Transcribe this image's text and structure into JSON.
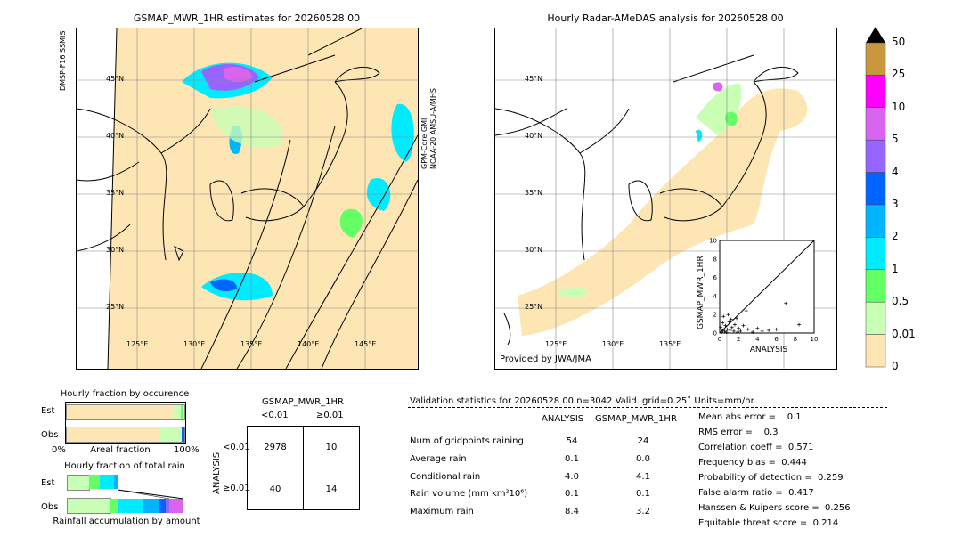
{
  "left_map": {
    "title": "GSMAP_MWR_1HR estimates for 20260528 00",
    "lat_labels": [
      "45°N",
      "40°N",
      "35°N",
      "30°N",
      "25°N"
    ],
    "lon_labels": [
      "125°E",
      "130°E",
      "135°E",
      "140°E",
      "145°E"
    ],
    "sensor_left": "DMSP-F16 SSMIS",
    "sensor_right_1": "GPM-Core GMI",
    "sensor_right_2": "NOAA-20 AMSU-A/MHS"
  },
  "right_map": {
    "title": "Hourly Radar-AMeDAS analysis for 20260528 00",
    "lat_labels": [
      "45°N",
      "40°N",
      "35°N",
      "30°N",
      "25°N"
    ],
    "lon_labels": [
      "125°E",
      "130°E",
      "135°E"
    ],
    "credit": "Provided by JWA/JMA"
  },
  "colorbar": {
    "labels": [
      "50",
      "25",
      "10",
      "5",
      "4",
      "3",
      "2",
      "1",
      "0.5",
      "0.01",
      "0"
    ],
    "colors": [
      "#c8963c",
      "#ff00ff",
      "#d864f0",
      "#9664ff",
      "#0064ff",
      "#00b4ff",
      "#00ebff",
      "#64ff64",
      "#c8ffb4",
      "#fde6b4"
    ]
  },
  "occurrence": {
    "title": "Hourly fraction by occurence",
    "rows": [
      "Est",
      "Obs"
    ],
    "x_left": "0%",
    "x_mid": "Areal fraction",
    "x_right": "100%"
  },
  "total_rain": {
    "title": "Hourly fraction of total rain",
    "rows": [
      "Est",
      "Obs"
    ],
    "caption": "Rainfall accumulation by amount"
  },
  "contingency": {
    "title": "GSMAP_MWR_1HR",
    "col_lt": "<0.01",
    "col_ge": "≥0.01",
    "ylabel": "ANALYSIS",
    "row_lt": "<0.01",
    "row_ge": "≥0.01",
    "cells": [
      "2978",
      "10",
      "40",
      "14"
    ]
  },
  "validation": {
    "header": "Validation statistics for 20260528 00  n=3042 Valid. grid=0.25˚ Units=mm/hr.",
    "col_analysis": "ANALYSIS",
    "col_gsmap": "GSMAP_MWR_1HR",
    "rows": [
      {
        "label": "Num of gridpoints raining",
        "a": "54",
        "g": "24"
      },
      {
        "label": "Average rain",
        "a": "0.1",
        "g": "0.0"
      },
      {
        "label": "Conditional rain",
        "a": "4.0",
        "g": "4.1"
      },
      {
        "label": "Rain volume (mm km²10⁶)",
        "a": "0.1",
        "g": "0.1"
      },
      {
        "label": "Maximum rain",
        "a": "8.4",
        "g": "3.2"
      }
    ],
    "scores": [
      "Mean abs error =    0.1",
      "RMS error =    0.3",
      "Correlation coeff =  0.571",
      "Frequency bias =  0.444",
      "Probability of detection =  0.259",
      "False alarm ratio =  0.417",
      "Hanssen & Kuipers score =  0.256",
      "Equitable threat score =  0.214"
    ]
  },
  "chart_data": {
    "type": "scatter",
    "title": "",
    "xlabel": "ANALYSIS",
    "ylabel": "GSMAP_MWR_1HR",
    "xlim": [
      0,
      10
    ],
    "ylim": [
      0,
      10
    ],
    "ticks": [
      "0",
      "2",
      "4",
      "6",
      "8",
      "10"
    ],
    "points": [
      [
        0.2,
        0.1
      ],
      [
        0.3,
        0.3
      ],
      [
        0.5,
        0.2
      ],
      [
        0.6,
        0.8
      ],
      [
        0.8,
        0.4
      ],
      [
        1.0,
        1.2
      ],
      [
        1.1,
        0.3
      ],
      [
        1.3,
        0.6
      ],
      [
        1.5,
        0.2
      ],
      [
        1.8,
        1.6
      ],
      [
        2.0,
        0.5
      ],
      [
        2.2,
        0.2
      ],
      [
        0.4,
        1.8
      ],
      [
        0.9,
        2.0
      ],
      [
        1.2,
        1.5
      ],
      [
        2.5,
        0.8
      ],
      [
        3.0,
        0.4
      ],
      [
        3.5,
        0.1
      ],
      [
        4.0,
        0.5
      ],
      [
        5.2,
        0.3
      ],
      [
        6.0,
        0.4
      ],
      [
        7.0,
        3.2
      ],
      [
        8.4,
        0.9
      ],
      [
        0.1,
        0.6
      ],
      [
        0.7,
        0.1
      ],
      [
        1.6,
        0.9
      ],
      [
        2.8,
        2.4
      ],
      [
        0.3,
        1.1
      ],
      [
        1.9,
        0.1
      ],
      [
        4.5,
        0.2
      ]
    ]
  }
}
